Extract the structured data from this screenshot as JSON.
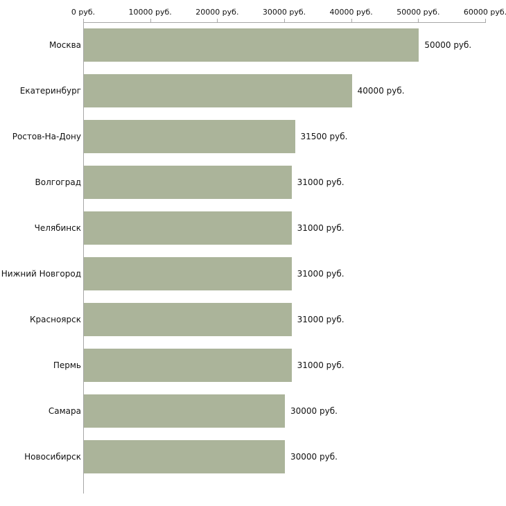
{
  "chart_data": {
    "type": "bar",
    "orientation": "horizontal",
    "title": "",
    "xlabel": "",
    "ylabel": "",
    "xlim": [
      0,
      60000
    ],
    "grid": false,
    "legend": "none",
    "bar_color": "#abb49a",
    "axis_color": "#a6a6a6",
    "text_color": "#111111",
    "categories": [
      "Москва",
      "Екатеринбург",
      "Ростов-На-Дону",
      "Волгоград",
      "Челябинск",
      "Нижний Новгород",
      "Красноярск",
      "Пермь",
      "Самара",
      "Новосибирск"
    ],
    "values": [
      50000,
      40000,
      31500,
      31000,
      31000,
      31000,
      31000,
      31000,
      30000,
      30000
    ],
    "value_labels": [
      "50000 руб.",
      "40000 руб.",
      "31500 руб.",
      "31000 руб.",
      "31000 руб.",
      "31000 руб.",
      "31000 руб.",
      "31000 руб.",
      "30000 руб.",
      "30000 руб."
    ],
    "x_ticks": [
      {
        "value": 0,
        "label": "0 руб."
      },
      {
        "value": 10000,
        "label": "10000 руб."
      },
      {
        "value": 20000,
        "label": "20000 руб."
      },
      {
        "value": 30000,
        "label": "30000 руб."
      },
      {
        "value": 40000,
        "label": "40000 руб."
      },
      {
        "value": 50000,
        "label": "50000 руб."
      },
      {
        "value": 60000,
        "label": "60000 руб."
      }
    ]
  }
}
